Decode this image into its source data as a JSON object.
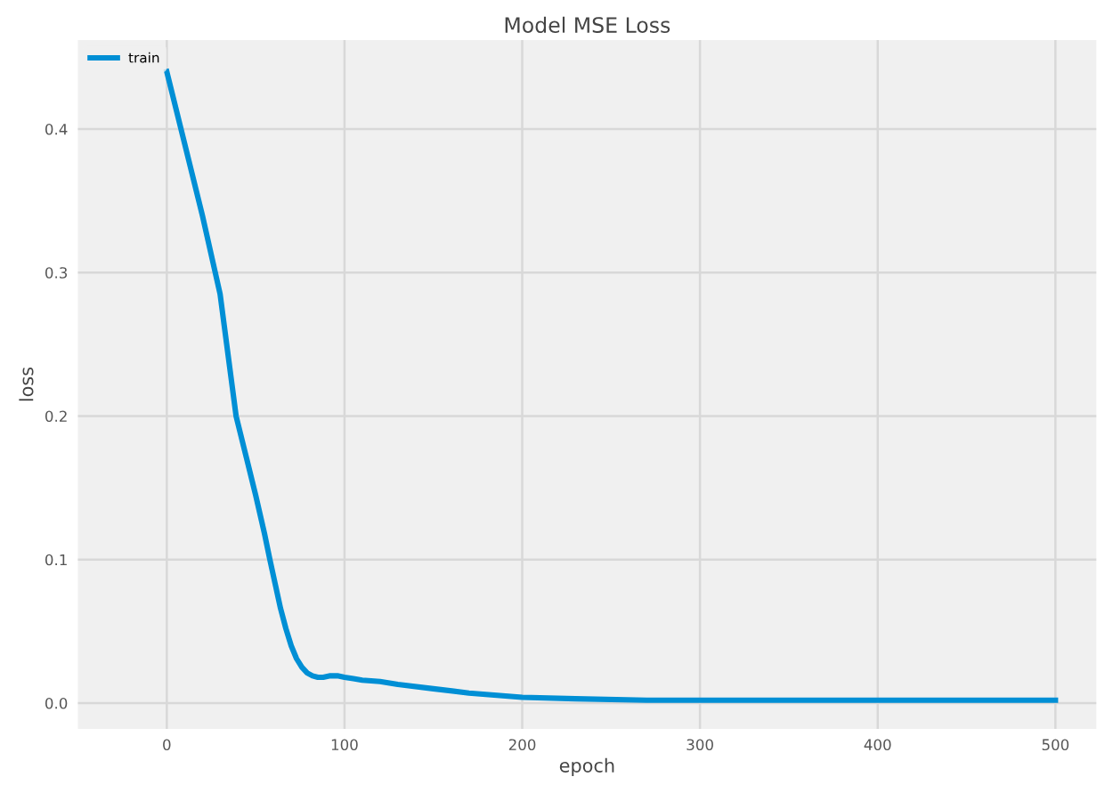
{
  "chart_data": {
    "type": "line",
    "title": "Model MSE Loss",
    "xlabel": "epoch",
    "ylabel": "loss",
    "xlim": [
      -50,
      523
    ],
    "ylim": [
      -0.018,
      0.462
    ],
    "xticks": [
      0,
      100,
      200,
      300,
      400,
      500
    ],
    "yticks": [
      {
        "value": 0,
        "label": "0.0"
      },
      0.1,
      0.2,
      0.3,
      0.4
    ],
    "grid": true,
    "legend": "top left",
    "series": [
      {
        "name": "train",
        "color": "#008fd5",
        "x": [
          0,
          10,
          20,
          30,
          39,
          45,
          50,
          55,
          58,
          61,
          64,
          67,
          70,
          73,
          76,
          79,
          82,
          85,
          88,
          92,
          96,
          100,
          105,
          110,
          120,
          130,
          150,
          170,
          200,
          230,
          270,
          320,
          400,
          500
        ],
        "values": [
          0.44,
          0.39,
          0.34,
          0.285,
          0.2,
          0.17,
          0.145,
          0.118,
          0.1,
          0.083,
          0.066,
          0.052,
          0.04,
          0.031,
          0.025,
          0.021,
          0.019,
          0.018,
          0.018,
          0.019,
          0.019,
          0.018,
          0.017,
          0.016,
          0.015,
          0.013,
          0.01,
          0.007,
          0.004,
          0.003,
          0.002,
          0.002,
          0.002,
          0.002
        ]
      }
    ]
  }
}
